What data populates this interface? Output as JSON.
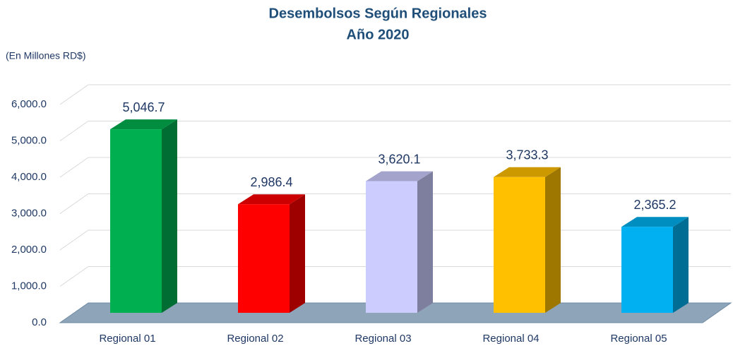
{
  "chart_data": {
    "type": "bar3d",
    "title": "Desembolsos Según Regionales",
    "subtitle": "Año 2020",
    "y_axis_label": "(En Millones RD$)",
    "categories": [
      "Regional 01",
      "Regional 02",
      "Regional 03",
      "Regional 04",
      "Regional 05"
    ],
    "values": [
      5046.7,
      2986.4,
      3620.1,
      3733.3,
      2365.2
    ],
    "value_labels": [
      "5,046.7",
      "2,986.4",
      "3,620.1",
      "3,733.3",
      "2,365.2"
    ],
    "colors": [
      "#00b050",
      "#ff0000",
      "#ccccff",
      "#ffc000",
      "#00b0f0"
    ],
    "ylim": [
      0,
      6000
    ],
    "yticks": [
      {
        "value": 0,
        "label": "0.0"
      },
      {
        "value": 1000,
        "label": "1,000.0"
      },
      {
        "value": 2000,
        "label": "2,000.0"
      },
      {
        "value": 3000,
        "label": "3,000.0"
      },
      {
        "value": 4000,
        "label": "4,000.0"
      },
      {
        "value": 5000,
        "label": "5,000.0"
      },
      {
        "value": 6000,
        "label": "6,000.0"
      }
    ],
    "grid": true
  }
}
